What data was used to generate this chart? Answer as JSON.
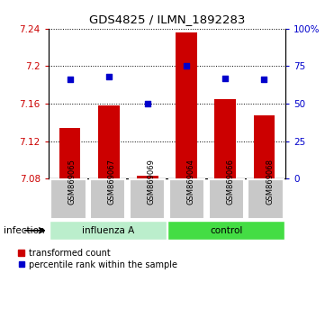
{
  "title": "GDS4825 / ILMN_1892283",
  "categories": [
    "GSM869065",
    "GSM869067",
    "GSM869069",
    "GSM869064",
    "GSM869066",
    "GSM869068"
  ],
  "group_labels": [
    "influenza A",
    "control"
  ],
  "bar_values": [
    7.134,
    7.158,
    7.083,
    7.236,
    7.165,
    7.148
  ],
  "dot_values": [
    66,
    68,
    50,
    75,
    67,
    66
  ],
  "ylim_left": [
    7.08,
    7.24
  ],
  "ylim_right": [
    0,
    100
  ],
  "yticks_left": [
    7.08,
    7.12,
    7.16,
    7.2,
    7.24
  ],
  "ytick_labels_left": [
    "7.08",
    "7.12",
    "7.16",
    "7.2",
    "7.24"
  ],
  "yticks_right": [
    0,
    25,
    50,
    75,
    100
  ],
  "ytick_labels_right": [
    "0",
    "25",
    "50",
    "75",
    "100%"
  ],
  "bar_color": "#CC0000",
  "dot_color": "#0000CC",
  "bar_bottom": 7.08,
  "xlabel_group": "infection",
  "legend_bar_label": "transformed count",
  "legend_dot_label": "percentile rank within the sample",
  "tick_label_color_left": "#CC0000",
  "tick_label_color_right": "#0000CC",
  "influenza_bg": "#BBEECC",
  "control_bg": "#44DD44",
  "xtick_bg": "#C8C8C8"
}
